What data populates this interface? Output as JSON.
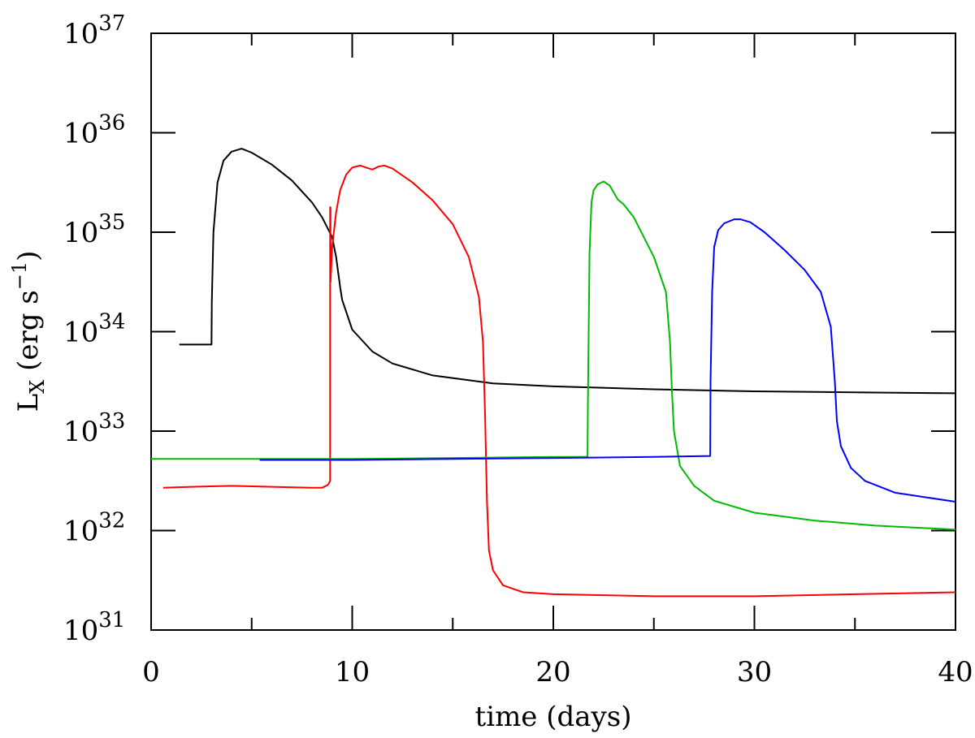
{
  "chart_data": {
    "type": "line",
    "xlabel": "time (days)",
    "ylabel_parts": {
      "main": "L",
      "sub": "X",
      "rest": " (erg s",
      "sup": "−1",
      "close": ")"
    },
    "xlim": [
      0,
      40
    ],
    "ylim_log10": [
      31,
      37
    ],
    "y_scale": "log",
    "grid": false,
    "x_ticks": [
      {
        "value": 0,
        "label": "0"
      },
      {
        "value": 10,
        "label": "10"
      },
      {
        "value": 20,
        "label": "20"
      },
      {
        "value": 30,
        "label": "30"
      },
      {
        "value": 40,
        "label": "40"
      }
    ],
    "y_ticks": [
      {
        "exp": 31,
        "base": "10",
        "sup": "31"
      },
      {
        "exp": 32,
        "base": "10",
        "sup": "32"
      },
      {
        "exp": 33,
        "base": "10",
        "sup": "33"
      },
      {
        "exp": 34,
        "base": "10",
        "sup": "34"
      },
      {
        "exp": 35,
        "base": "10",
        "sup": "35"
      },
      {
        "exp": 36,
        "base": "10",
        "sup": "36"
      },
      {
        "exp": 37,
        "base": "10",
        "sup": "37"
      }
    ],
    "series": [
      {
        "color": "#000000",
        "x_days": [
          1.4,
          3.0,
          3.02,
          3.1,
          3.3,
          3.6,
          4.0,
          4.5,
          5.0,
          6.0,
          7.0,
          8.0,
          8.5,
          9.0,
          9.2,
          9.4,
          9.5,
          10.0,
          11.0,
          12.0,
          14.0,
          17.0,
          20.0,
          25.0,
          30.0,
          35.0,
          40.0
        ],
        "log10_lx": [
          33.87,
          33.87,
          34.3,
          35.0,
          35.5,
          35.72,
          35.81,
          35.84,
          35.8,
          35.68,
          35.52,
          35.3,
          35.15,
          34.95,
          34.75,
          34.45,
          34.32,
          34.02,
          33.8,
          33.68,
          33.56,
          33.48,
          33.45,
          33.42,
          33.4,
          33.39,
          33.38
        ]
      },
      {
        "color": "#ff0000",
        "x_days": [
          0.6,
          2.0,
          4.0,
          6.0,
          8.0,
          8.5,
          8.8,
          8.9,
          8.9,
          8.92,
          8.92,
          9.0,
          9.2,
          9.4,
          9.7,
          10.0,
          10.4,
          10.7,
          11.0,
          11.3,
          11.6,
          12.0,
          13.0,
          14.0,
          15.0,
          15.8,
          16.3,
          16.5,
          16.6,
          16.7,
          16.8,
          17.0,
          17.5,
          18.5,
          20.0,
          25.0,
          30.0,
          35.0,
          40.0
        ],
        "log10_lx": [
          32.43,
          32.44,
          32.45,
          32.44,
          32.43,
          32.43,
          32.46,
          32.5,
          35.25,
          35.25,
          34.5,
          34.85,
          35.2,
          35.42,
          35.58,
          35.65,
          35.67,
          35.65,
          35.63,
          35.66,
          35.67,
          35.64,
          35.5,
          35.32,
          35.08,
          34.75,
          34.35,
          33.9,
          33.2,
          32.3,
          31.8,
          31.6,
          31.45,
          31.38,
          31.36,
          31.34,
          31.34,
          31.36,
          31.38
        ]
      },
      {
        "color": "#00bb00",
        "x_days": [
          0.0,
          5.0,
          10.0,
          15.0,
          20.0,
          21.7,
          21.72,
          21.8,
          21.9,
          22.0,
          22.2,
          22.5,
          22.8,
          23.2,
          23.5,
          24.0,
          25.0,
          25.6,
          25.8,
          25.9,
          26.0,
          26.3,
          27.0,
          28.0,
          30.0,
          33.0,
          36.0,
          40.0
        ],
        "log10_lx": [
          32.72,
          32.72,
          32.72,
          32.73,
          32.74,
          32.74,
          33.3,
          34.8,
          35.3,
          35.42,
          35.48,
          35.51,
          35.47,
          35.33,
          35.28,
          35.15,
          34.75,
          34.4,
          33.9,
          33.4,
          33.0,
          32.65,
          32.45,
          32.3,
          32.18,
          32.1,
          32.05,
          32.01
        ]
      },
      {
        "color": "#0000ff",
        "x_days": [
          5.4,
          10.0,
          15.0,
          20.0,
          25.0,
          27.8,
          27.82,
          27.9,
          28.0,
          28.2,
          28.5,
          29.0,
          29.3,
          29.8,
          30.5,
          31.5,
          32.5,
          33.3,
          33.8,
          34.0,
          34.1,
          34.3,
          34.8,
          35.5,
          37.0,
          40.0
        ],
        "log10_lx": [
          32.71,
          32.71,
          32.72,
          32.73,
          32.74,
          32.75,
          33.5,
          34.4,
          34.85,
          35.02,
          35.09,
          35.13,
          35.13,
          35.1,
          35.0,
          34.82,
          34.62,
          34.4,
          34.05,
          33.5,
          33.1,
          32.85,
          32.63,
          32.5,
          32.38,
          32.29
        ]
      }
    ]
  }
}
